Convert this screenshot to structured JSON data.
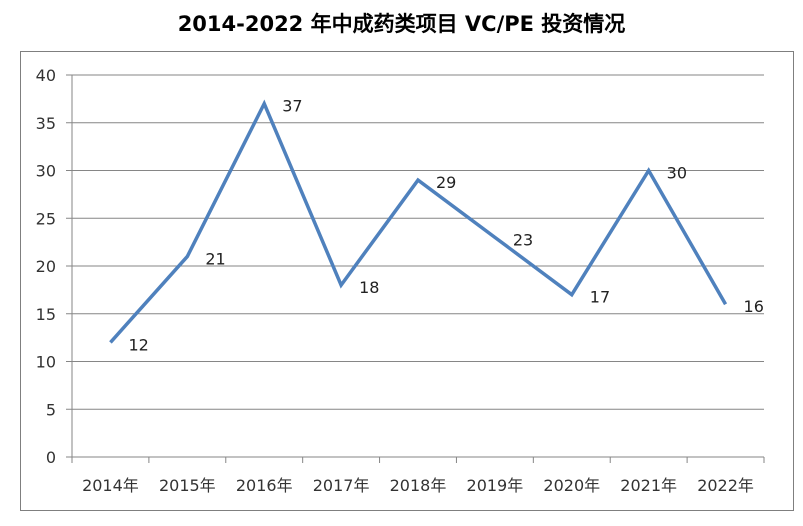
{
  "chart_data": {
    "type": "line",
    "title": "2014-2022 年中成药类项目 VC/PE 投资情况",
    "xlabel": "",
    "ylabel": "",
    "categories": [
      "2014年",
      "2015年",
      "2016年",
      "2017年",
      "2018年",
      "2019年",
      "2020年",
      "2021年",
      "2022年"
    ],
    "series": [
      {
        "values": [
          12,
          21,
          37,
          18,
          29,
          23,
          17,
          30,
          16
        ]
      }
    ],
    "ylim": [
      0,
      40
    ],
    "yticks": [
      "0",
      "5",
      "10",
      "15",
      "20",
      "25",
      "30",
      "35",
      "40"
    ],
    "grid": true,
    "legend": "none",
    "line_color": "#4f81bd"
  }
}
